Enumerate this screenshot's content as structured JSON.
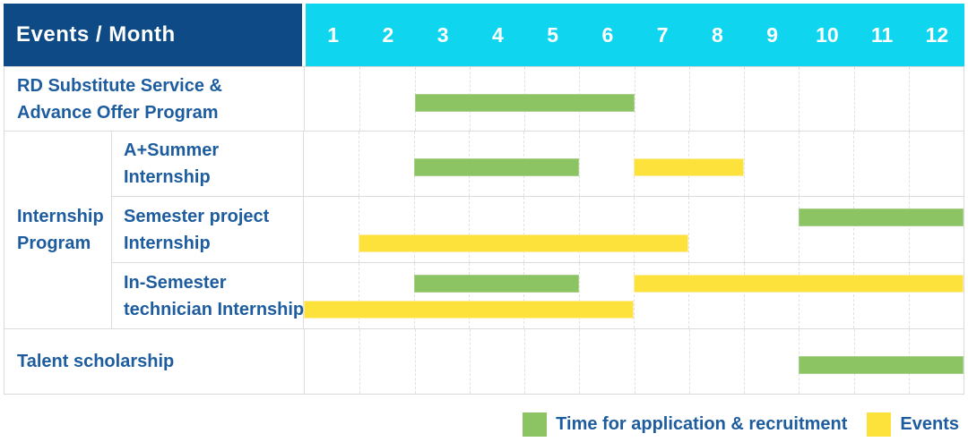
{
  "header": {
    "title": "Events / Month",
    "months": [
      "1",
      "2",
      "3",
      "4",
      "5",
      "6",
      "7",
      "8",
      "9",
      "10",
      "11",
      "12"
    ]
  },
  "group": {
    "label": "Internship\nProgram"
  },
  "rows": [
    {
      "id": "rd-substitute-service",
      "label": "RD Substitute Service &\nAdvance Offer Program",
      "bars": [
        {
          "type": "application",
          "start": 3,
          "end": 6,
          "lane": "single"
        }
      ]
    },
    {
      "id": "a-plus-summer-internship",
      "label": "A+Summer\nInternship",
      "bars": [
        {
          "type": "application",
          "start": 3,
          "end": 5,
          "lane": "single"
        },
        {
          "type": "event",
          "start": 7,
          "end": 8,
          "lane": "single"
        }
      ]
    },
    {
      "id": "semester-project-internship",
      "label": "Semester project\nInternship",
      "bars": [
        {
          "type": "application",
          "start": 10,
          "end": 12,
          "lane": "top"
        },
        {
          "type": "event",
          "start": 2,
          "end": 7,
          "lane": "bottom"
        }
      ]
    },
    {
      "id": "in-semester-technician-internship",
      "label": "In-Semester\ntechnician Internship",
      "bars": [
        {
          "type": "application",
          "start": 3,
          "end": 5,
          "lane": "top"
        },
        {
          "type": "event",
          "start": 7,
          "end": 12,
          "lane": "top"
        },
        {
          "type": "event",
          "start": 1,
          "end": 6,
          "lane": "bottom"
        }
      ]
    },
    {
      "id": "talent-scholarship",
      "label": "Talent scholarship",
      "bars": [
        {
          "type": "application",
          "start": 10,
          "end": 12,
          "lane": "single"
        }
      ]
    }
  ],
  "legend": [
    {
      "type": "application",
      "label": "Time for application & recruitment"
    },
    {
      "type": "event",
      "label": "Events"
    }
  ],
  "colors": {
    "navy_header": "#0d4a86",
    "cyan_header": "#10d5ef",
    "application_green": "#8cc363",
    "event_yellow": "#fde23c",
    "label_text_blue": "#1d5c9e",
    "grid_gray": "#dcdcdc"
  },
  "chart_data": {
    "type": "gantt",
    "title": "Events / Month",
    "x": {
      "unit": "month",
      "ticks": [
        1,
        2,
        3,
        4,
        5,
        6,
        7,
        8,
        9,
        10,
        11,
        12
      ],
      "range": [
        1,
        12
      ]
    },
    "legend_position": "bottom-right",
    "grid": true,
    "series_meaning": {
      "application": "Time for application & recruitment (green)",
      "event": "Events (yellow)"
    },
    "tasks": [
      {
        "name": "RD Substitute Service & Advance Offer Program",
        "group": null,
        "application_recruitment_months": [
          [
            3,
            6
          ]
        ],
        "event_months": []
      },
      {
        "name": "A+Summer Internship",
        "group": "Internship Program",
        "application_recruitment_months": [
          [
            3,
            5
          ]
        ],
        "event_months": [
          [
            7,
            8
          ]
        ]
      },
      {
        "name": "Semester project Internship",
        "group": "Internship Program",
        "application_recruitment_months": [
          [
            10,
            12
          ]
        ],
        "event_months": [
          [
            2,
            7
          ]
        ]
      },
      {
        "name": "In-Semester technician Internship",
        "group": "Internship Program",
        "application_recruitment_months": [
          [
            3,
            5
          ]
        ],
        "event_months": [
          [
            1,
            6
          ],
          [
            7,
            12
          ]
        ]
      },
      {
        "name": "Talent scholarship",
        "group": null,
        "application_recruitment_months": [
          [
            10,
            12
          ]
        ],
        "event_months": []
      }
    ]
  }
}
